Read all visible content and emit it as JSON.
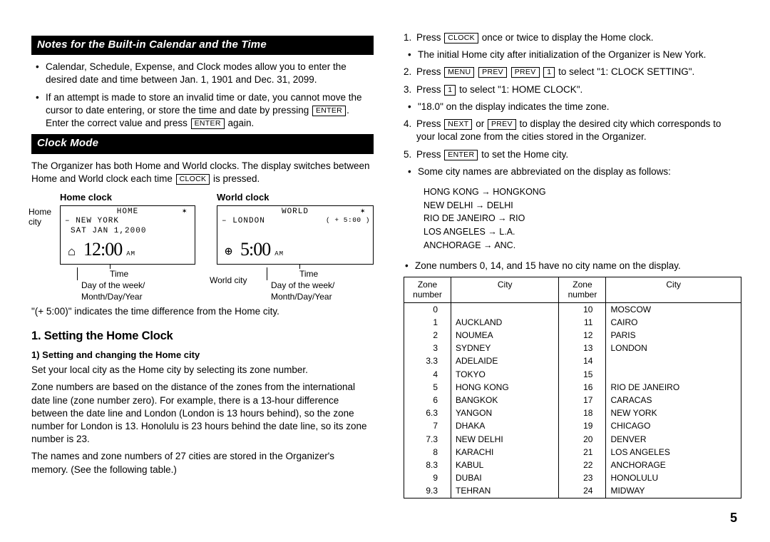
{
  "headers": {
    "notes": "Notes for the Built-in Calendar and the Time",
    "clock_mode": "Clock Mode"
  },
  "notes_bullets": [
    "Calendar, Schedule, Expense, and Clock modes allow you to enter the desired date and time between Jan. 1, 1901 and Dec. 31, 2099."
  ],
  "notes_bullet2_a": "If an attempt is made to store an invalid time or date, you cannot move the cursor to date entering, or store the time and date by pressing ",
  "notes_bullet2_b": ". Enter the correct value and press ",
  "notes_bullet2_c": " again.",
  "keys": {
    "enter": "ENTER",
    "clock": "CLOCK",
    "menu": "MENU",
    "prev": "PREV",
    "next": "NEXT",
    "one": "1"
  },
  "clock_mode_para_a": "The Organizer has both Home and World clocks. The display switches between Home and World clock each time ",
  "clock_mode_para_b": " is pressed.",
  "home_clock": {
    "title": "Home clock",
    "header": "HOME",
    "city": "NEW YORK",
    "date": "SAT JAN  1,2000",
    "time": "12:00",
    "ampm": "AM",
    "label_home_city": "Home city",
    "under1": "Time",
    "under2": "Day of the week/",
    "under3": "Month/Day/Year"
  },
  "world_clock": {
    "title": "World clock",
    "header": "WORLD",
    "city": "LONDON",
    "offset": "( + 5:00 )",
    "time": "5:00",
    "ampm": "AM",
    "label_world_city": "World city",
    "under1": "Time",
    "under2": "Day of the week/",
    "under3": "Month/Day/Year"
  },
  "offset_note": "\"(+ 5:00)\" indicates the time difference from the Home city.",
  "setting_home_clock_title": "1. Setting the Home Clock",
  "setting_home_city_sub": "1)  Setting and changing the Home city",
  "set_home_para1": "Set your local city as the Home city by selecting its zone number.",
  "set_home_para2": "Zone numbers are based on the distance of the zones from the international date line (zone number zero). For example, there is a 13-hour difference between the date line and London (London is 13 hours behind), so the zone number for London is 13. Honolulu is 23 hours behind the date line, so its zone number is 23.",
  "set_home_para3": "The names and zone numbers of 27 cities are stored in the Organizer's memory. (See the following table.)",
  "right_steps": {
    "s1a": "Press ",
    "s1b": " once or twice to display the Home clock.",
    "s1_bullet": "The initial Home city after initialization of the Organizer is New York.",
    "s2a": "Press ",
    "s2b": " to select \"1: CLOCK SETTING\".",
    "s3a": "Press ",
    "s3b": " to select \"1: HOME CLOCK\".",
    "s3_bullet": "\"18.0\" on the display indicates the time zone.",
    "s4a": "Press ",
    "s4b": " or ",
    "s4c": " to display the desired city which corresponds to your local zone from the cities stored in the Organizer.",
    "s5a": "Press ",
    "s5b": " to set the Home city.",
    "s5_bullet": "Some city names are abbreviated on the display as follows:"
  },
  "abbrevs": [
    "HONG KONG → HONGKONG",
    "NEW DELHI → DELHI",
    "RIO DE JANEIRO → RIO",
    "LOS ANGELES → L.A.",
    "ANCHORAGE → ANC."
  ],
  "zone_note": "Zone numbers 0, 14, and 15 have no city name on the display.",
  "table": {
    "th_zone": "Zone number",
    "th_city": "City",
    "rows_left": [
      [
        "0",
        ""
      ],
      [
        "1",
        "AUCKLAND"
      ],
      [
        "2",
        "NOUMEA"
      ],
      [
        "3",
        "SYDNEY"
      ],
      [
        "3.3",
        "ADELAIDE"
      ],
      [
        "4",
        "TOKYO"
      ],
      [
        "5",
        "HONG KONG"
      ],
      [
        "6",
        "BANGKOK"
      ],
      [
        "6.3",
        "YANGON"
      ],
      [
        "7",
        "DHAKA"
      ],
      [
        "7.3",
        "NEW DELHI"
      ],
      [
        "8",
        "KARACHI"
      ],
      [
        "8.3",
        "KABUL"
      ],
      [
        "9",
        "DUBAI"
      ],
      [
        "9.3",
        "TEHRAN"
      ]
    ],
    "rows_right": [
      [
        "10",
        "MOSCOW"
      ],
      [
        "11",
        "CAIRO"
      ],
      [
        "12",
        "PARIS"
      ],
      [
        "13",
        "LONDON"
      ],
      [
        "14",
        ""
      ],
      [
        "15",
        ""
      ],
      [
        "16",
        "RIO DE JANEIRO"
      ],
      [
        "17",
        "CARACAS"
      ],
      [
        "18",
        "NEW YORK"
      ],
      [
        "19",
        "CHICAGO"
      ],
      [
        "20",
        "DENVER"
      ],
      [
        "21",
        "LOS ANGELES"
      ],
      [
        "22",
        "ANCHORAGE"
      ],
      [
        "23",
        "HONOLULU"
      ],
      [
        "24",
        "MIDWAY"
      ]
    ]
  },
  "page_number": "5"
}
